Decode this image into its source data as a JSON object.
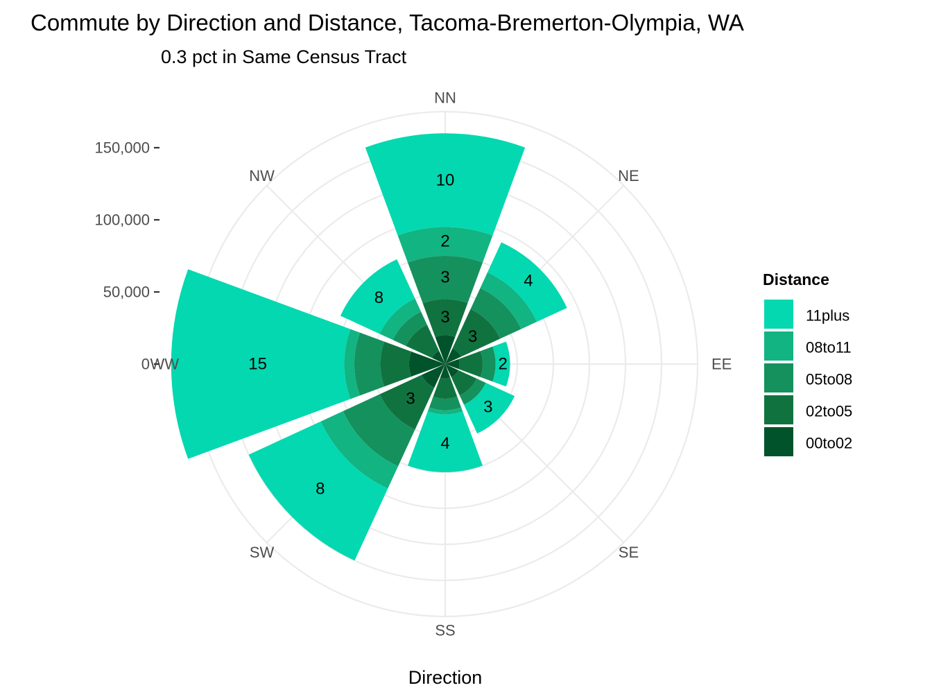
{
  "chart_data": {
    "type": "bar",
    "coord": "polar",
    "title": "Commute by Direction and Distance, Tacoma-Bremerton-Olympia, WA",
    "subtitle": "0.3 pct in Same Census Tract",
    "xlabel": "Direction",
    "ylabel": "",
    "categories": [
      "NN",
      "NE",
      "EE",
      "SE",
      "SS",
      "SW",
      "WW",
      "NW"
    ],
    "ylim": [
      0,
      175000
    ],
    "y_ticks": [
      0,
      50000,
      100000,
      150000
    ],
    "y_tick_labels": [
      "0",
      "50,000",
      "100,000",
      "150,000"
    ],
    "stack_order": [
      "00to02",
      "02to05",
      "05to08",
      "08to11",
      "11plus"
    ],
    "series": [
      {
        "name": "00to02",
        "color": "#00532a",
        "values": [
          20000,
          12000,
          10000,
          10000,
          10000,
          18000,
          25000,
          10000
        ]
      },
      {
        "name": "02to05",
        "color": "#10733f",
        "values": [
          25000,
          30000,
          16000,
          14000,
          14000,
          32000,
          20000,
          20000
        ]
      },
      {
        "name": "05to08",
        "color": "#15915d",
        "values": [
          30000,
          16000,
          9000,
          7000,
          8000,
          28000,
          18000,
          10000
        ]
      },
      {
        "name": "08to11",
        "color": "#12b482",
        "values": [
          20000,
          12000,
          0,
          0,
          3000,
          17000,
          7000,
          10000
        ]
      },
      {
        "name": "11plus",
        "color": "#04d8b0",
        "values": [
          65000,
          23000,
          10000,
          22000,
          40000,
          55000,
          120000,
          30000
        ]
      }
    ],
    "data_labels": [
      {
        "dir": "NN",
        "series": "11plus",
        "text": "10"
      },
      {
        "dir": "NN",
        "series": "08to11",
        "text": "2"
      },
      {
        "dir": "NN",
        "series": "05to08",
        "text": "3"
      },
      {
        "dir": "NN",
        "series": "02to05",
        "text": "3"
      },
      {
        "dir": "NE",
        "series": "11plus",
        "text": "4"
      },
      {
        "dir": "NE",
        "series": "02to05",
        "text": "3"
      },
      {
        "dir": "EE",
        "series": "11plus",
        "text": "2"
      },
      {
        "dir": "SE",
        "series": "11plus",
        "text": "3"
      },
      {
        "dir": "SS",
        "series": "11plus",
        "text": "4"
      },
      {
        "dir": "SW",
        "series": "11plus",
        "text": "8"
      },
      {
        "dir": "SW",
        "series": "02to05",
        "text": "3"
      },
      {
        "dir": "WW",
        "series": "11plus",
        "text": "15"
      },
      {
        "dir": "NW",
        "series": "11plus",
        "text": "8"
      }
    ],
    "legend": {
      "title": "Distance",
      "placement": "right",
      "entries": [
        {
          "label": "11plus",
          "color": "#04d8b0"
        },
        {
          "label": "08to11",
          "color": "#12b482"
        },
        {
          "label": "05to08",
          "color": "#15915d"
        },
        {
          "label": "02to05",
          "color": "#10733f"
        },
        {
          "label": "00to02",
          "color": "#00532a"
        }
      ]
    },
    "grid": true,
    "grid_color": "#ebebeb"
  }
}
